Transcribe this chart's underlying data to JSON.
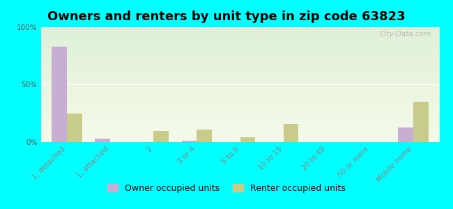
{
  "title": "Owners and renters by unit type in zip code 63823",
  "categories": [
    "1, detached",
    "1, attached",
    "2",
    "3 or 4",
    "5 to 9",
    "10 to 19",
    "20 to 49",
    "50 or more",
    "Mobile home"
  ],
  "owner_values": [
    83,
    3,
    0,
    1,
    0,
    0,
    0,
    0,
    13
  ],
  "renter_values": [
    25,
    0,
    10,
    11,
    4,
    16,
    0,
    0,
    35
  ],
  "owner_color": "#c9aed4",
  "renter_color": "#c8cc8a",
  "grad_top": "#dff0d8",
  "grad_bottom": "#f5faea",
  "outer_bg": "#00ffff",
  "ylim": [
    0,
    100
  ],
  "yticks": [
    0,
    50,
    100
  ],
  "ytick_labels": [
    "0%",
    "50%",
    "100%"
  ],
  "bar_width": 0.35,
  "legend_owner": "Owner occupied units",
  "legend_renter": "Renter occupied units",
  "title_fontsize": 13,
  "tick_fontsize": 7.5,
  "legend_fontsize": 9,
  "watermark": "City-Data.com"
}
